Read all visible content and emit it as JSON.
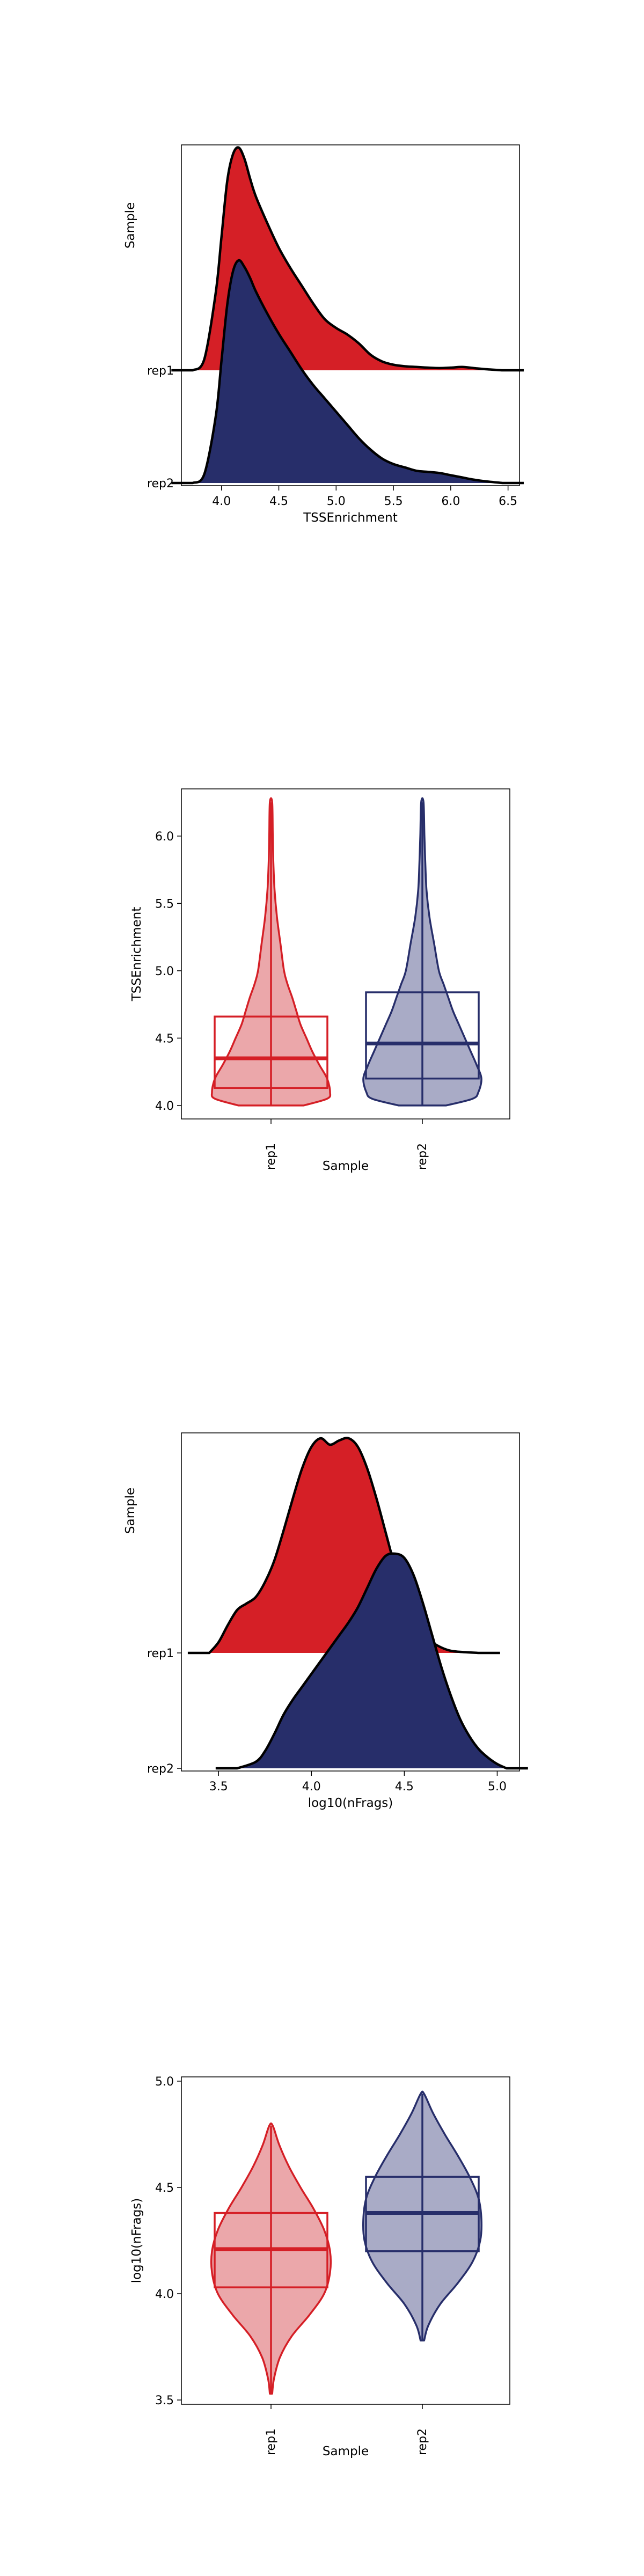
{
  "colors": {
    "rep1": "#D51F26",
    "rep2": "#272E6A",
    "rep1_light": "#EBA7AA",
    "rep2_light": "#A9ABC6"
  },
  "chart_data": [
    {
      "type": "ridgeline",
      "xlabel": "TSSEnrichment",
      "ylabel": "Sample",
      "xlim": [
        3.65,
        6.6
      ],
      "xticks": [
        4.0,
        4.5,
        5.0,
        5.5,
        6.0,
        6.5
      ],
      "xtick_labels": [
        "4.0",
        "4.5",
        "5.0",
        "5.5",
        "6.0",
        "6.5"
      ],
      "categories": [
        "rep1",
        "rep2"
      ],
      "series": [
        {
          "name": "rep1",
          "x": [
            3.75,
            3.85,
            3.95,
            4.0,
            4.05,
            4.1,
            4.15,
            4.2,
            4.25,
            4.3,
            4.4,
            4.5,
            4.6,
            4.7,
            4.8,
            4.9,
            5.0,
            5.1,
            5.2,
            5.3,
            5.4,
            5.5,
            5.6,
            5.7,
            5.8,
            5.9,
            6.0,
            6.1,
            6.2,
            6.3,
            6.45
          ],
          "density": [
            0.0,
            0.05,
            0.35,
            0.6,
            0.85,
            0.97,
            1.0,
            0.95,
            0.86,
            0.78,
            0.66,
            0.55,
            0.46,
            0.38,
            0.3,
            0.23,
            0.19,
            0.16,
            0.12,
            0.07,
            0.04,
            0.025,
            0.018,
            0.015,
            0.012,
            0.01,
            0.012,
            0.015,
            0.01,
            0.005,
            0.0
          ]
        },
        {
          "name": "rep2",
          "x": [
            3.75,
            3.85,
            3.95,
            4.0,
            4.05,
            4.1,
            4.15,
            4.2,
            4.25,
            4.3,
            4.4,
            4.5,
            4.6,
            4.7,
            4.8,
            4.9,
            5.0,
            5.1,
            5.2,
            5.3,
            5.4,
            5.5,
            5.6,
            5.7,
            5.8,
            5.9,
            6.0,
            6.1,
            6.2,
            6.3,
            6.45
          ],
          "density": [
            0.0,
            0.04,
            0.3,
            0.55,
            0.8,
            0.95,
            1.0,
            0.97,
            0.92,
            0.86,
            0.76,
            0.67,
            0.59,
            0.51,
            0.44,
            0.38,
            0.32,
            0.26,
            0.2,
            0.15,
            0.11,
            0.085,
            0.07,
            0.055,
            0.05,
            0.045,
            0.035,
            0.025,
            0.015,
            0.008,
            0.0
          ]
        }
      ]
    },
    {
      "type": "violin_box",
      "xlabel": "Sample",
      "ylabel": "TSSEnrichment",
      "ylim": [
        3.9,
        6.35
      ],
      "yticks": [
        4.0,
        4.5,
        5.0,
        5.5,
        6.0
      ],
      "ytick_labels": [
        "4.0",
        "4.5",
        "5.0",
        "5.5",
        "6.0"
      ],
      "categories": [
        "rep1",
        "rep2"
      ],
      "series": [
        {
          "name": "rep1",
          "y": [
            4.0,
            4.05,
            4.1,
            4.2,
            4.3,
            4.4,
            4.5,
            4.6,
            4.7,
            4.8,
            4.9,
            5.0,
            5.2,
            5.4,
            5.6,
            5.8,
            6.0,
            6.25
          ],
          "width": [
            0.55,
            0.95,
            1.0,
            0.95,
            0.82,
            0.7,
            0.6,
            0.5,
            0.43,
            0.36,
            0.28,
            0.22,
            0.16,
            0.1,
            0.06,
            0.04,
            0.03,
            0.02
          ],
          "q1": 4.13,
          "median": 4.35,
          "q3": 4.66,
          "min": 4.0,
          "max": 6.25
        },
        {
          "name": "rep2",
          "y": [
            4.0,
            4.05,
            4.1,
            4.2,
            4.3,
            4.4,
            4.5,
            4.6,
            4.7,
            4.8,
            4.9,
            5.0,
            5.2,
            5.4,
            5.6,
            5.8,
            6.0,
            6.25
          ],
          "width": [
            0.4,
            0.85,
            0.95,
            1.0,
            0.92,
            0.82,
            0.72,
            0.62,
            0.52,
            0.44,
            0.36,
            0.28,
            0.2,
            0.12,
            0.07,
            0.05,
            0.035,
            0.02
          ],
          "q1": 4.2,
          "median": 4.46,
          "q3": 4.84,
          "min": 4.0,
          "max": 6.25
        }
      ]
    },
    {
      "type": "ridgeline",
      "xlabel": "log10(nFrags)",
      "ylabel": "Sample",
      "xlim": [
        3.3,
        5.12
      ],
      "xticks": [
        3.5,
        4.0,
        4.5,
        5.0
      ],
      "xtick_labels": [
        "3.5",
        "4.0",
        "4.5",
        "5.0"
      ],
      "categories": [
        "rep1",
        "rep2"
      ],
      "series": [
        {
          "name": "rep1",
          "x": [
            3.45,
            3.5,
            3.55,
            3.6,
            3.65,
            3.7,
            3.75,
            3.8,
            3.85,
            3.9,
            3.95,
            4.0,
            4.05,
            4.1,
            4.15,
            4.2,
            4.25,
            4.3,
            4.35,
            4.4,
            4.45,
            4.5,
            4.55,
            4.6,
            4.65,
            4.7,
            4.75,
            4.8,
            4.9
          ],
          "density": [
            0.0,
            0.05,
            0.13,
            0.2,
            0.23,
            0.26,
            0.33,
            0.43,
            0.57,
            0.72,
            0.86,
            0.96,
            1.0,
            0.97,
            0.99,
            1.0,
            0.96,
            0.86,
            0.72,
            0.56,
            0.4,
            0.26,
            0.16,
            0.09,
            0.05,
            0.025,
            0.01,
            0.005,
            0.0
          ]
        },
        {
          "name": "rep2",
          "x": [
            3.6,
            3.7,
            3.75,
            3.8,
            3.85,
            3.9,
            3.95,
            4.0,
            4.05,
            4.1,
            4.15,
            4.2,
            4.25,
            4.3,
            4.35,
            4.4,
            4.45,
            4.5,
            4.55,
            4.6,
            4.65,
            4.7,
            4.75,
            4.8,
            4.85,
            4.9,
            4.95,
            5.0,
            5.05
          ],
          "density": [
            0.0,
            0.03,
            0.08,
            0.16,
            0.25,
            0.32,
            0.38,
            0.44,
            0.5,
            0.56,
            0.62,
            0.68,
            0.75,
            0.84,
            0.93,
            0.99,
            1.0,
            0.98,
            0.9,
            0.77,
            0.62,
            0.47,
            0.34,
            0.23,
            0.15,
            0.09,
            0.05,
            0.02,
            0.0
          ]
        }
      ]
    },
    {
      "type": "violin_box",
      "xlabel": "Sample",
      "ylabel": "log10(nFrags)",
      "ylim": [
        3.48,
        5.02
      ],
      "yticks": [
        3.5,
        4.0,
        4.5,
        5.0
      ],
      "ytick_labels": [
        "3.5",
        "4.0",
        "4.5",
        "5.0"
      ],
      "categories": [
        "rep1",
        "rep2"
      ],
      "series": [
        {
          "name": "rep1",
          "y": [
            3.53,
            3.6,
            3.7,
            3.8,
            3.9,
            4.0,
            4.1,
            4.2,
            4.3,
            4.4,
            4.5,
            4.6,
            4.7,
            4.79
          ],
          "width": [
            0.02,
            0.05,
            0.15,
            0.35,
            0.65,
            0.9,
            1.0,
            1.0,
            0.9,
            0.72,
            0.5,
            0.3,
            0.14,
            0.03
          ],
          "q1": 4.03,
          "median": 4.21,
          "q3": 4.38,
          "min": 3.53,
          "max": 4.79
        },
        {
          "name": "rep2",
          "y": [
            3.78,
            3.85,
            3.95,
            4.05,
            4.15,
            4.25,
            4.35,
            4.45,
            4.55,
            4.65,
            4.75,
            4.85,
            4.94
          ],
          "width": [
            0.03,
            0.1,
            0.3,
            0.6,
            0.85,
            0.98,
            1.0,
            0.95,
            0.8,
            0.6,
            0.38,
            0.18,
            0.03
          ],
          "q1": 4.2,
          "median": 4.38,
          "q3": 4.55,
          "min": 3.78,
          "max": 4.94
        }
      ]
    }
  ]
}
